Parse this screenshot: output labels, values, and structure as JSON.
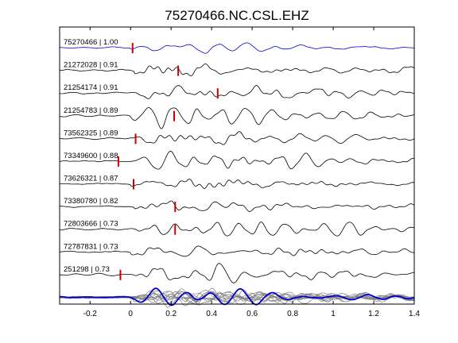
{
  "chart_data": {
    "type": "line",
    "title": "75270466.NC.CSL.EHZ",
    "xlabel": "",
    "ylabel": "",
    "xlim": [
      -0.35,
      1.4
    ],
    "xticks": [
      -0.2,
      0,
      0.2,
      0.4,
      0.6,
      0.8,
      1,
      1.2,
      1.4
    ],
    "xtick_labels": [
      "-0.2",
      "0",
      "0.2",
      "0.4",
      "0.6",
      "0.8",
      "1",
      "1.2",
      "1.4"
    ],
    "grid": false,
    "legend": "none",
    "reference_color": "#0000cc",
    "trace_color": "#000000",
    "pick_color": "#cc0000",
    "stack_color": "#7f7f7f",
    "series": [
      {
        "name": "75270466 | 1.00",
        "pick_time": 0.01,
        "reference": true
      },
      {
        "name": "21272028 | 0.91",
        "pick_time": 0.235
      },
      {
        "name": "21254174 | 0.91",
        "pick_time": 0.43
      },
      {
        "name": "21254783 | 0.89",
        "pick_time": 0.215
      },
      {
        "name": "73562325 | 0.89",
        "pick_time": 0.025
      },
      {
        "name": "73349600 | 0.88",
        "pick_time": -0.06
      },
      {
        "name": "73626321 | 0.87",
        "pick_time": 0.015
      },
      {
        "name": "73380780 | 0.82",
        "pick_time": 0.22
      },
      {
        "name": "72803666 | 0.73",
        "pick_time": 0.22
      },
      {
        "name": "72787831 | 0.73",
        "pick_time": null
      },
      {
        "name": "251298 | 0.73",
        "pick_time": -0.05
      }
    ],
    "stack_row": true
  }
}
